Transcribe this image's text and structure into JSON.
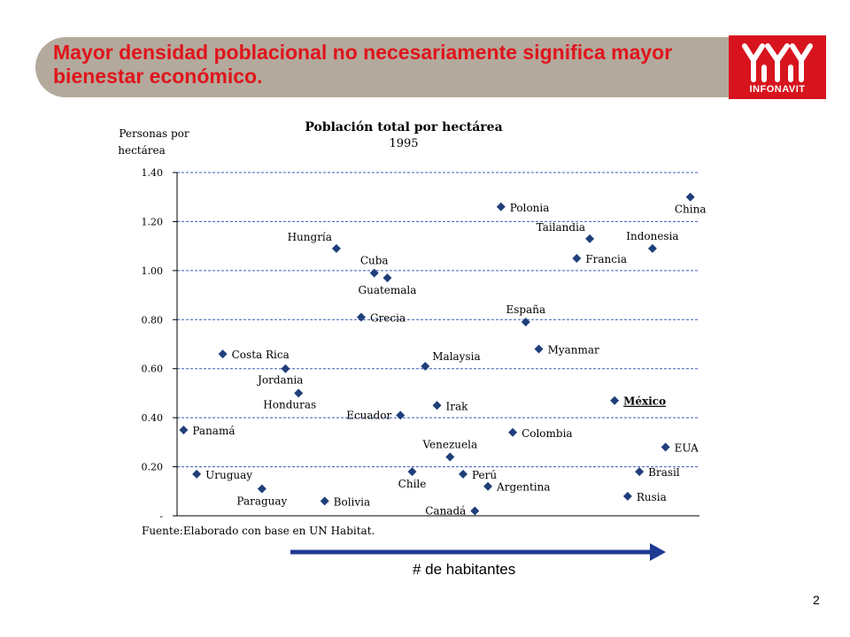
{
  "slide": {
    "title": "Mayor densidad poblacional no necesariamente significa mayor bienestar económico.",
    "logo_text": "INFONAVIT",
    "arrow_label": "# de habitantes",
    "page_number": "2",
    "footnote": "Fuente:Elaborado con base en UN Habitat."
  },
  "colors": {
    "banner": "#b3a99c",
    "title": "#e0141b",
    "logo": "#d7141e",
    "marker": "#1f3f7a",
    "gridline": "#3d5bb5",
    "arrow": "#1f3a93"
  },
  "chart_data": {
    "type": "scatter",
    "title": "Población total por hectárea",
    "subtitle": "1995",
    "ylabel_line1": "Personas por",
    "ylabel_line2": "hectárea",
    "ylim": [
      0,
      1.4
    ],
    "yticks": [
      {
        "value": 1.4,
        "label": "1.40"
      },
      {
        "value": 1.2,
        "label": "1.20"
      },
      {
        "value": 1.0,
        "label": "1.00"
      },
      {
        "value": 0.8,
        "label": "0.80"
      },
      {
        "value": 0.6,
        "label": "0.60"
      },
      {
        "value": 0.4,
        "label": "0.40"
      },
      {
        "value": 0.2,
        "label": "0.20"
      },
      {
        "value": 0.0,
        "label": "-"
      }
    ],
    "xlim": [
      0,
      40
    ],
    "grid": "horizontal dashed",
    "points": [
      {
        "label": "Panamá",
        "x": 0.5,
        "y": 0.35,
        "pos": "right"
      },
      {
        "label": "Uruguay",
        "x": 1.5,
        "y": 0.17,
        "pos": "right"
      },
      {
        "label": "Costa Rica",
        "x": 3.5,
        "y": 0.66,
        "pos": "right"
      },
      {
        "label": "Paraguay",
        "x": 6.5,
        "y": 0.11,
        "pos": "below"
      },
      {
        "label": "Jordania",
        "x": 8.3,
        "y": 0.6,
        "pos": "below-left"
      },
      {
        "label": "Honduras",
        "x": 9.3,
        "y": 0.5,
        "pos": "below-left"
      },
      {
        "label": "Hungría",
        "x": 12.2,
        "y": 1.09,
        "pos": "above-left"
      },
      {
        "label": "Bolivia",
        "x": 11.3,
        "y": 0.06,
        "pos": "right"
      },
      {
        "label": "Grecia",
        "x": 14.1,
        "y": 0.81,
        "pos": "right"
      },
      {
        "label": "Cuba",
        "x": 15.1,
        "y": 0.99,
        "pos": "above"
      },
      {
        "label": "Guatemala",
        "x": 16.1,
        "y": 0.97,
        "pos": "below"
      },
      {
        "label": "Ecuador",
        "x": 17.1,
        "y": 0.41,
        "pos": "left"
      },
      {
        "label": "Chile",
        "x": 18.0,
        "y": 0.18,
        "pos": "below"
      },
      {
        "label": "Malaysia",
        "x": 19.0,
        "y": 0.61,
        "pos": "above-right"
      },
      {
        "label": "Irak",
        "x": 19.9,
        "y": 0.45,
        "pos": "right"
      },
      {
        "label": "Venezuela",
        "x": 20.9,
        "y": 0.24,
        "pos": "above"
      },
      {
        "label": "Perú",
        "x": 21.9,
        "y": 0.17,
        "pos": "right"
      },
      {
        "label": "Canadá",
        "x": 22.8,
        "y": 0.02,
        "pos": "left"
      },
      {
        "label": "Argentina",
        "x": 23.8,
        "y": 0.12,
        "pos": "right"
      },
      {
        "label": "Polonia",
        "x": 24.8,
        "y": 1.26,
        "pos": "right"
      },
      {
        "label": "Colombia",
        "x": 25.7,
        "y": 0.34,
        "pos": "right"
      },
      {
        "label": "España",
        "x": 26.7,
        "y": 0.79,
        "pos": "above"
      },
      {
        "label": "Myanmar",
        "x": 27.7,
        "y": 0.68,
        "pos": "right"
      },
      {
        "label": "Francia",
        "x": 30.6,
        "y": 1.05,
        "pos": "right"
      },
      {
        "label": "Tailandia",
        "x": 31.6,
        "y": 1.13,
        "pos": "above-left"
      },
      {
        "label": "México",
        "x": 33.5,
        "y": 0.47,
        "pos": "right",
        "bold": true
      },
      {
        "label": "Rusia",
        "x": 34.5,
        "y": 0.08,
        "pos": "right"
      },
      {
        "label": "Brasil",
        "x": 35.4,
        "y": 0.18,
        "pos": "right"
      },
      {
        "label": "Indonesia",
        "x": 36.4,
        "y": 1.09,
        "pos": "above"
      },
      {
        "label": "EUA",
        "x": 37.4,
        "y": 0.28,
        "pos": "right"
      },
      {
        "label": "China",
        "x": 39.3,
        "y": 1.3,
        "pos": "below"
      }
    ]
  }
}
